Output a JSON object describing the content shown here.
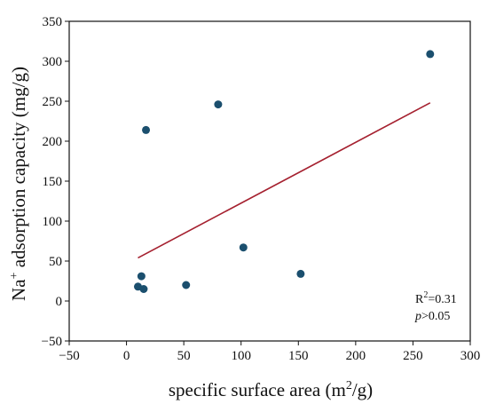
{
  "chart_data": {
    "type": "scatter",
    "xlabel": {
      "main": "specific surface area (m",
      "sup": "2",
      "tail": "/g)"
    },
    "ylabel": {
      "pre": "Na",
      "sup": "+",
      "tail": " adsorption capacity (mg/g)"
    },
    "xlim": [
      -50,
      300
    ],
    "ylim": [
      -50,
      350
    ],
    "x_ticks": [
      "−50",
      "0",
      "50",
      "100",
      "150",
      "200",
      "250",
      "300"
    ],
    "y_ticks": [
      "−50",
      "0",
      "50",
      "100",
      "150",
      "200",
      "250",
      "300",
      "350"
    ],
    "points": [
      {
        "x": 10,
        "y": 18
      },
      {
        "x": 13,
        "y": 31
      },
      {
        "x": 15,
        "y": 15
      },
      {
        "x": 17,
        "y": 214
      },
      {
        "x": 52,
        "y": 20
      },
      {
        "x": 80,
        "y": 246
      },
      {
        "x": 102,
        "y": 67
      },
      {
        "x": 152,
        "y": 34
      },
      {
        "x": 265,
        "y": 309
      }
    ],
    "fit_line": {
      "x": [
        10,
        265
      ],
      "y": [
        54,
        248
      ]
    },
    "annotation": {
      "r_pre": "R",
      "r_sup": "2",
      "r_tail": "=0.31",
      "p_pre": "p",
      "p_tail": ">0.05"
    },
    "colors": {
      "points": "#1b4f6e",
      "fit": "#a5202f",
      "axis": "#111111"
    },
    "grid": false,
    "legend": "none"
  }
}
